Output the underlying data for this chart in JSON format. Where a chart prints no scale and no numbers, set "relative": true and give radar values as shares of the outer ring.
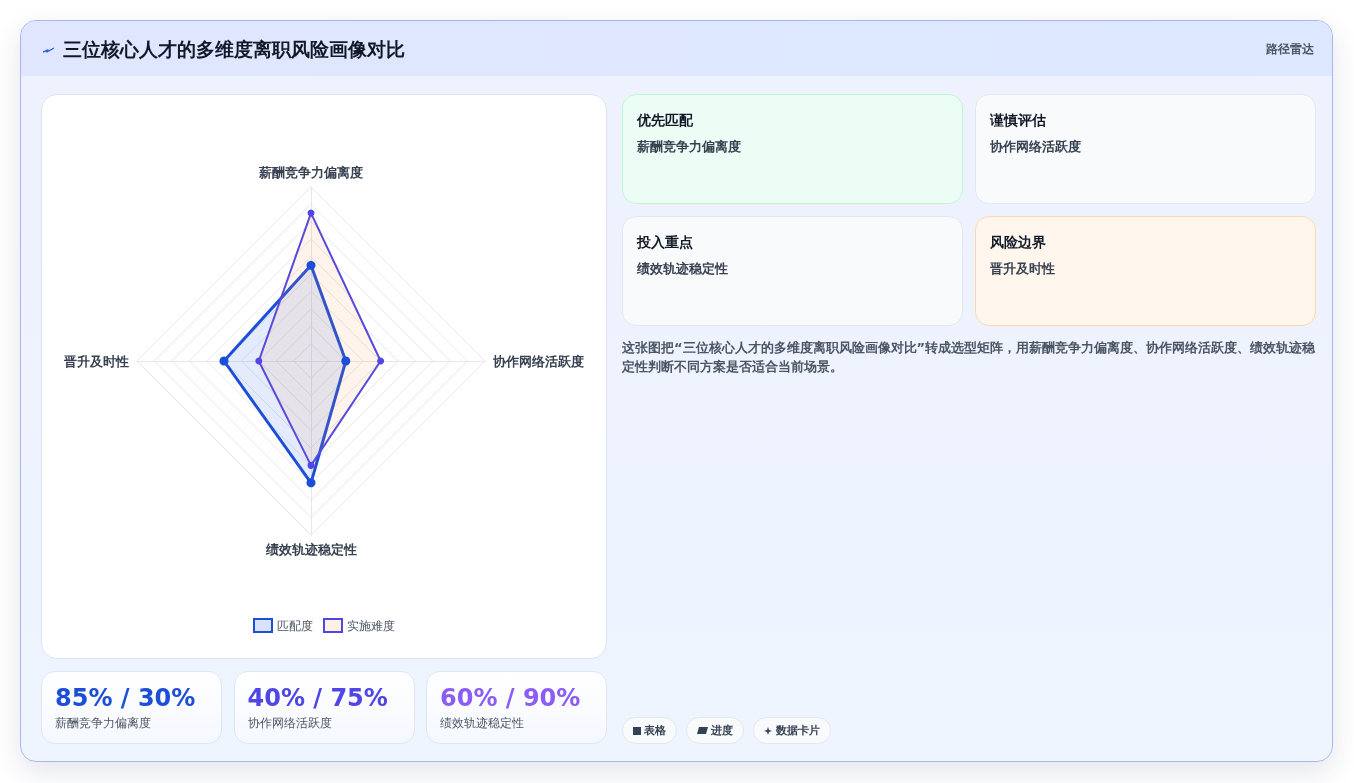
{
  "chart_data": {
    "type": "radar",
    "title": "三位核心人才的多维度离职风险画像对比",
    "subtitle": "路径雷达",
    "categories": [
      "薪酬竞争力偏离度",
      "协作网络活跃度",
      "绩效轨迹稳定性",
      "晋升及时性"
    ],
    "relative": true,
    "series": [
      {
        "name": "匹配度",
        "color": "#1d4ed8",
        "values": [
          0.55,
          0.2,
          0.7,
          0.5
        ]
      },
      {
        "name": "实施难度",
        "color": "#5046e5",
        "values": [
          0.85,
          0.4,
          0.6,
          0.3
        ]
      }
    ],
    "legend": "bottom",
    "marker": "circle",
    "grid": true,
    "annotations": [
      "优先匹配",
      "薪酬竞争力偏离度",
      "谨慎评估",
      "协作网络活跃度",
      "投入重点",
      "绩效轨迹稳定性",
      "风险边界",
      "晋升及时性",
      "这张图把“三位核心人才的多维度离职风险画像对比”转成选型矩阵，用薪酬竞争力偏离度、协作网络活跃度、绩效轨迹稳定性判断不同方案是否适合当前场景。",
      "85% / 30%",
      "薪酬竞争力偏离度",
      "40% / 75%",
      "协作网络活跃度",
      "60% / 90%",
      "绩效轨迹稳定性",
      "表格",
      "进度",
      "数据卡片"
    ]
  }
}
